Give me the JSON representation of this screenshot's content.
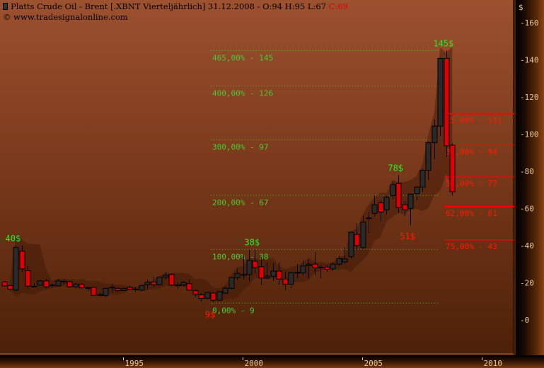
{
  "header": {
    "title": "Platts Crude Oil - Brent [.XBNT  Vierteljährlich] 31.12.2008 - O:94 H:95 L:67",
    "close_label": "C:69",
    "copyright": "© www.tradesignalonline.com",
    "symbol_icon": "candlestick-icon"
  },
  "colors": {
    "background_top": "#9c512f",
    "background_bottom": "#4c2108",
    "up_candle": "#2a2a2a",
    "down_candle": "#e00000",
    "fib_extension": "#33cc33",
    "fib_retracement": "#ff0000",
    "band": "#3c1606"
  },
  "chart_data": {
    "type": "candlestick",
    "title": "Platts Crude Oil - Brent [.XBNT  Vierteljährlich]",
    "ylabel": "$",
    "ylim": [
      -10,
      170
    ],
    "yticks": [
      "160",
      "140",
      "120",
      "100",
      "80",
      "60",
      "40",
      "20",
      "0"
    ],
    "xticks": [
      "1995",
      "2000",
      "2005",
      "2010"
    ],
    "frequency": "quarterly",
    "grid": false,
    "candles": [
      {
        "q": "1990Q1",
        "o": 20.4,
        "h": 21,
        "l": 18,
        "c": 18.3
      },
      {
        "q": "1990Q2",
        "o": 18.5,
        "h": 18.5,
        "l": 15.5,
        "c": 16.5
      },
      {
        "q": "1990Q3",
        "o": 16,
        "h": 39.5,
        "l": 15.5,
        "c": 39
      },
      {
        "q": "1990Q4",
        "o": 37,
        "h": 40,
        "l": 26,
        "c": 27.5
      },
      {
        "q": "1991Q1",
        "o": 26.5,
        "h": 29,
        "l": 17,
        "c": 18.2
      },
      {
        "q": "1991Q2",
        "o": 18,
        "h": 19.8,
        "l": 17.5,
        "c": 18.1
      },
      {
        "q": "1991Q3",
        "o": 18.7,
        "h": 21.5,
        "l": 18.5,
        "c": 21
      },
      {
        "q": "1991Q4",
        "o": 21,
        "h": 22,
        "l": 17,
        "c": 17.8
      },
      {
        "q": "1992Q1",
        "o": 18.8,
        "h": 19.6,
        "l": 17.3,
        "c": 18.6
      },
      {
        "q": "1992Q2",
        "o": 18.3,
        "h": 22,
        "l": 18,
        "c": 21
      },
      {
        "q": "1992Q3",
        "o": 20.8,
        "h": 21.5,
        "l": 19,
        "c": 20.4
      },
      {
        "q": "1992Q4",
        "o": 20.5,
        "h": 21,
        "l": 17.3,
        "c": 17.8
      },
      {
        "q": "1993Q1",
        "o": 17.7,
        "h": 19.8,
        "l": 17,
        "c": 19.3
      },
      {
        "q": "1993Q2",
        "o": 19.2,
        "h": 19.8,
        "l": 17,
        "c": 17.3
      },
      {
        "q": "1993Q3",
        "o": 17.4,
        "h": 17.8,
        "l": 15.5,
        "c": 17.2
      },
      {
        "q": "1993Q4",
        "o": 17.5,
        "h": 17.5,
        "l": 13,
        "c": 13.2
      },
      {
        "q": "1994Q1",
        "o": 13.4,
        "h": 14.6,
        "l": 12.8,
        "c": 13.6
      },
      {
        "q": "1994Q2",
        "o": 13.1,
        "h": 17,
        "l": 12.5,
        "c": 17
      },
      {
        "q": "1994Q3",
        "o": 17.3,
        "h": 19,
        "l": 15,
        "c": 17.6
      },
      {
        "q": "1994Q4",
        "o": 17,
        "h": 17.8,
        "l": 15.2,
        "c": 15.8
      },
      {
        "q": "1995Q1",
        "o": 15.8,
        "h": 17.3,
        "l": 15.5,
        "c": 16.9
      },
      {
        "q": "1995Q2",
        "o": 17.5,
        "h": 18.5,
        "l": 16,
        "c": 16.4
      },
      {
        "q": "1995Q3",
        "o": 16.5,
        "h": 17.5,
        "l": 15,
        "c": 16.6
      },
      {
        "q": "1995Q4",
        "o": 16,
        "h": 19,
        "l": 15.5,
        "c": 18.5
      },
      {
        "q": "1996Q1",
        "o": 19,
        "h": 21.7,
        "l": 16.5,
        "c": 20.2
      },
      {
        "q": "1996Q2",
        "o": 20.3,
        "h": 23,
        "l": 17.6,
        "c": 19
      },
      {
        "q": "1996Q3",
        "o": 19,
        "h": 23,
        "l": 18.6,
        "c": 23
      },
      {
        "q": "1996Q4",
        "o": 22.9,
        "h": 25.6,
        "l": 22,
        "c": 24
      },
      {
        "q": "1997Q1",
        "o": 24.4,
        "h": 25,
        "l": 18,
        "c": 18.7
      },
      {
        "q": "1997Q2",
        "o": 18.8,
        "h": 20.2,
        "l": 16.6,
        "c": 18.6
      },
      {
        "q": "1997Q3",
        "o": 18.7,
        "h": 20.8,
        "l": 18,
        "c": 20.2
      },
      {
        "q": "1997Q4",
        "o": 19.5,
        "h": 21.5,
        "l": 15.8,
        "c": 16
      },
      {
        "q": "1998Q1",
        "o": 15.7,
        "h": 16.5,
        "l": 12.5,
        "c": 13.8
      },
      {
        "q": "1998Q2",
        "o": 13.5,
        "h": 14.5,
        "l": 10,
        "c": 11.6
      },
      {
        "q": "1998Q3",
        "o": 11.6,
        "h": 15,
        "l": 11,
        "c": 14.8
      },
      {
        "q": "1998Q4",
        "o": 14.4,
        "h": 15,
        "l": 9.4,
        "c": 10.6
      },
      {
        "q": "1999Q1",
        "o": 10.6,
        "h": 15.5,
        "l": 10,
        "c": 15.2
      },
      {
        "q": "1999Q2",
        "o": 14.4,
        "h": 18,
        "l": 14,
        "c": 17.1
      },
      {
        "q": "1999Q3",
        "o": 17,
        "h": 23,
        "l": 16.5,
        "c": 22.8
      },
      {
        "q": "1999Q4",
        "o": 22.8,
        "h": 27.5,
        "l": 21.5,
        "c": 25
      },
      {
        "q": "2000Q1",
        "o": 24.2,
        "h": 34.4,
        "l": 21.7,
        "c": 24.4
      },
      {
        "q": "2000Q2",
        "o": 24.4,
        "h": 37.6,
        "l": 20.6,
        "c": 32
      },
      {
        "q": "2000Q3",
        "o": 31.6,
        "h": 38,
        "l": 25,
        "c": 28.2
      },
      {
        "q": "2000Q4",
        "o": 28.6,
        "h": 33,
        "l": 18.8,
        "c": 22.5
      },
      {
        "q": "2001Q1",
        "o": 22.5,
        "h": 31,
        "l": 22,
        "c": 23.6
      },
      {
        "q": "2001Q2",
        "o": 23.4,
        "h": 30.5,
        "l": 21,
        "c": 26.3
      },
      {
        "q": "2001Q3",
        "o": 26.3,
        "h": 31,
        "l": 19,
        "c": 22
      },
      {
        "q": "2001Q4",
        "o": 22,
        "h": 26,
        "l": 16,
        "c": 19.2
      },
      {
        "q": "2002Q1",
        "o": 19.2,
        "h": 26,
        "l": 17,
        "c": 25.5
      },
      {
        "q": "2002Q2",
        "o": 25.3,
        "h": 30,
        "l": 22.5,
        "c": 25.6
      },
      {
        "q": "2002Q3",
        "o": 25.3,
        "h": 31.8,
        "l": 24,
        "c": 29
      },
      {
        "q": "2002Q4",
        "o": 29.2,
        "h": 32.5,
        "l": 22.5,
        "c": 30
      },
      {
        "q": "2003Q1",
        "o": 30,
        "h": 36.3,
        "l": 24,
        "c": 28
      },
      {
        "q": "2003Q2",
        "o": 28.2,
        "h": 29.5,
        "l": 22.5,
        "c": 28.4
      },
      {
        "q": "2003Q3",
        "o": 28.4,
        "h": 29.5,
        "l": 26,
        "c": 27.2
      },
      {
        "q": "2003Q4",
        "o": 27.4,
        "h": 31,
        "l": 26.5,
        "c": 30
      },
      {
        "q": "2004Q1",
        "o": 30,
        "h": 34.4,
        "l": 29,
        "c": 33
      },
      {
        "q": "2004Q2",
        "o": 31.2,
        "h": 38.9,
        "l": 30.6,
        "c": 32.8
      },
      {
        "q": "2004Q3",
        "o": 34,
        "h": 47.5,
        "l": 33,
        "c": 47.2
      },
      {
        "q": "2004Q4",
        "o": 46,
        "h": 52,
        "l": 37.3,
        "c": 40
      },
      {
        "q": "2005Q1",
        "o": 39,
        "h": 56,
        "l": 38,
        "c": 52.6
      },
      {
        "q": "2005Q2",
        "o": 54.5,
        "h": 58,
        "l": 46.7,
        "c": 54.9
      },
      {
        "q": "2005Q3",
        "o": 57.3,
        "h": 67,
        "l": 55.6,
        "c": 62
      },
      {
        "q": "2005Q4",
        "o": 63,
        "h": 64,
        "l": 53,
        "c": 58
      },
      {
        "q": "2006Q1",
        "o": 59.2,
        "h": 67,
        "l": 57,
        "c": 66
      },
      {
        "q": "2006Q2",
        "o": 66.8,
        "h": 74.7,
        "l": 65,
        "c": 72.8
      },
      {
        "q": "2006Q3",
        "o": 73.4,
        "h": 78,
        "l": 57.6,
        "c": 60.5
      },
      {
        "q": "2006Q4",
        "o": 62,
        "h": 64,
        "l": 56,
        "c": 59.2
      },
      {
        "q": "2007Q1",
        "o": 60,
        "h": 68,
        "l": 51,
        "c": 67.7
      },
      {
        "q": "2007Q2",
        "o": 68,
        "h": 72,
        "l": 64.5,
        "c": 71.5
      },
      {
        "q": "2007Q3",
        "o": 71.5,
        "h": 81,
        "l": 69,
        "c": 80.5
      },
      {
        "q": "2007Q4",
        "o": 80.5,
        "h": 96,
        "l": 75.4,
        "c": 95.4
      },
      {
        "q": "2008Q1",
        "o": 95.4,
        "h": 107.7,
        "l": 86.5,
        "c": 104.3
      },
      {
        "q": "2008Q2",
        "o": 104.3,
        "h": 141,
        "l": 98.8,
        "c": 140.8
      },
      {
        "q": "2008Q3",
        "o": 140.8,
        "h": 145,
        "l": 87.7,
        "c": 93.7
      },
      {
        "q": "2008Q4",
        "o": 94,
        "h": 95,
        "l": 67,
        "c": 69
      }
    ],
    "fib_extensions": [
      {
        "label": "465,00% - 145",
        "value": 145
      },
      {
        "label": "400,00% - 126",
        "value": 126
      },
      {
        "label": "300,00% - 97",
        "value": 97
      },
      {
        "label": "200,00% - 67",
        "value": 67
      },
      {
        "label": "100,00% - 38",
        "value": 38
      },
      {
        "label": "0,00% - 9",
        "value": 9
      }
    ],
    "fib_retracements": [
      {
        "label": "25,00% - 111",
        "value": 111
      },
      {
        "label": "38,00% - 94",
        "value": 94
      },
      {
        "label": "50,00% - 77",
        "value": 77
      },
      {
        "label": "62,00% - 61",
        "value": 61
      },
      {
        "label": "75,00% - 43",
        "value": 43
      }
    ],
    "annotations": [
      {
        "text": "40$",
        "q": "1990Q3",
        "value": 40,
        "kind": "high"
      },
      {
        "text": "9$",
        "q": "1998Q4",
        "value": 9,
        "kind": "low"
      },
      {
        "text": "38$",
        "q": "2000Q3",
        "value": 38,
        "kind": "high"
      },
      {
        "text": "78$",
        "q": "2006Q3",
        "value": 78,
        "kind": "high"
      },
      {
        "text": "51$",
        "q": "2007Q1",
        "value": 51,
        "kind": "low"
      },
      {
        "text": "145$",
        "q": "2008Q3",
        "value": 145,
        "kind": "high"
      }
    ]
  }
}
